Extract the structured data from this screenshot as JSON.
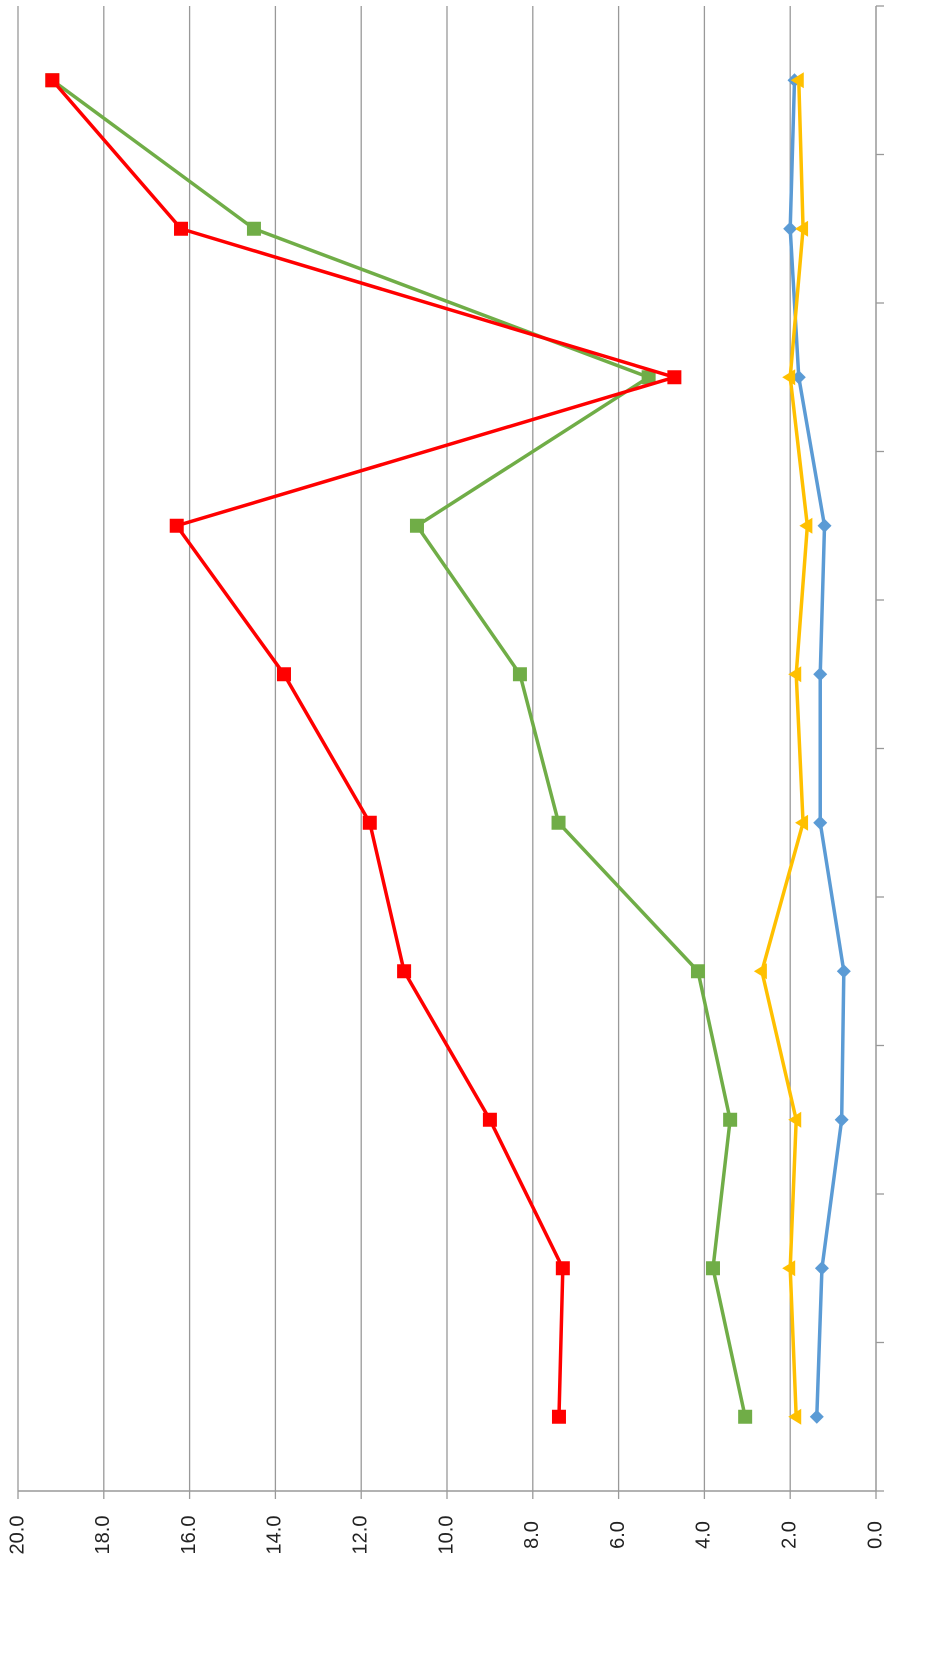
{
  "chart_data": {
    "type": "line",
    "orientation": "horizontal",
    "categories": [
      null,
      null,
      null,
      null,
      null,
      null,
      null,
      null,
      null,
      null
    ],
    "series": [
      {
        "color": "#5b9bd5",
        "marker": "diamond",
        "values": [
          1.38,
          1.26,
          0.8,
          0.75,
          1.3,
          1.3,
          1.2,
          1.8,
          2.0,
          1.9
        ]
      },
      {
        "color": "#ffc000",
        "marker": "triangle",
        "values": [
          1.86,
          2.0,
          1.86,
          2.66,
          1.7,
          1.86,
          1.6,
          2.0,
          1.7,
          1.8
        ]
      },
      {
        "color": "#70ad47",
        "marker": "square",
        "values": [
          3.05,
          3.8,
          3.4,
          4.15,
          7.4,
          8.3,
          10.7,
          5.3,
          14.5,
          19.2
        ]
      },
      {
        "color": "#ff0000",
        "marker": "square",
        "values": [
          7.39,
          7.3,
          9.0,
          11.0,
          11.8,
          13.8,
          16.3,
          4.7,
          16.2,
          19.2
        ]
      }
    ],
    "ylim": [
      0,
      20
    ],
    "yticks": [
      {
        "value": 0,
        "label": "0.0"
      },
      {
        "value": 2,
        "label": "2.0"
      },
      {
        "value": 4,
        "label": "4.0"
      },
      {
        "value": 6,
        "label": "6.0"
      },
      {
        "value": 8,
        "label": "8.0"
      },
      {
        "value": 10,
        "label": "10.0"
      },
      {
        "value": 12,
        "label": "12.0"
      },
      {
        "value": 14,
        "label": "14.0"
      },
      {
        "value": 16,
        "label": "16.0"
      },
      {
        "value": 18,
        "label": "18.0"
      },
      {
        "value": 20,
        "label": "20.0"
      }
    ],
    "grid": true
  }
}
